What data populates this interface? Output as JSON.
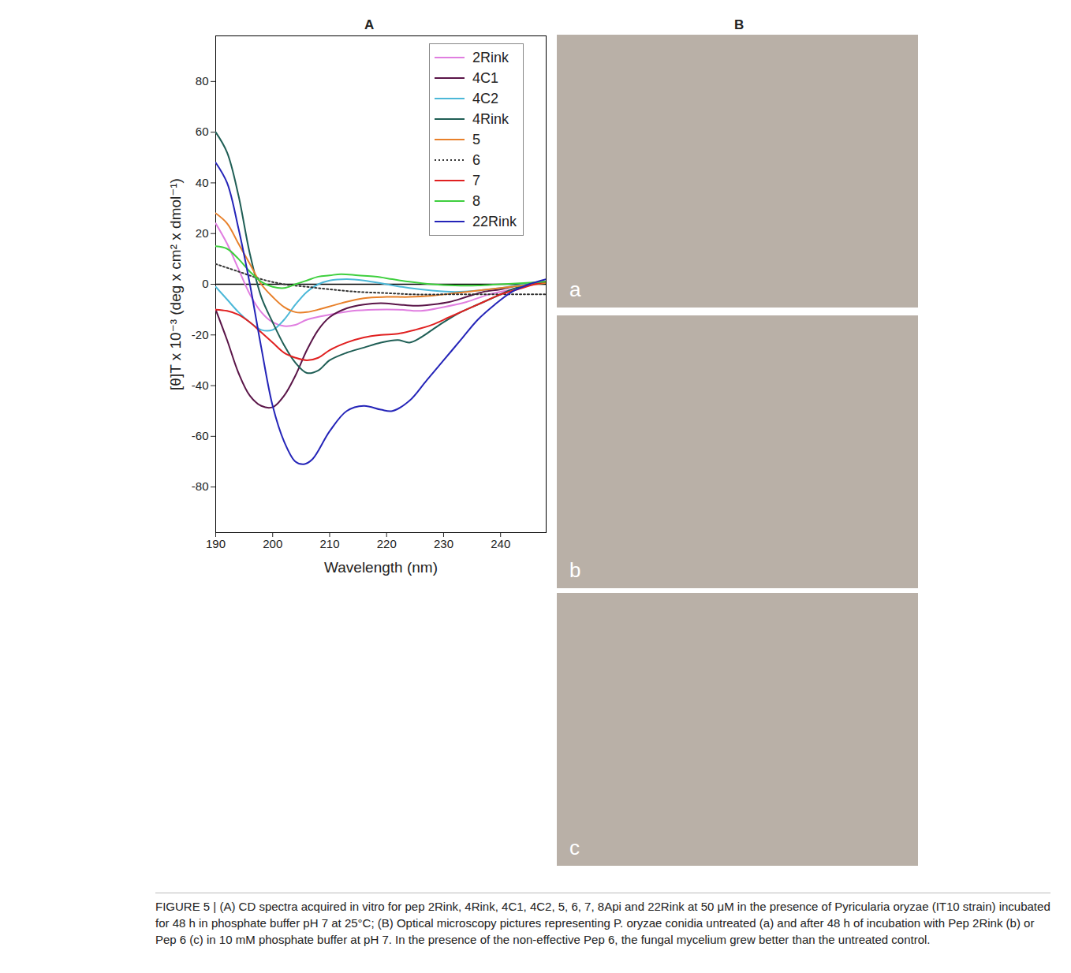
{
  "chart_data": {
    "type": "line",
    "panel_label": "A",
    "x_label": "Wavelength (nm)",
    "y_label": "[θ]T x 10⁻³ (deg x cm² x dmol⁻¹)",
    "xlim": [
      190,
      248
    ],
    "xticks": [
      190,
      200,
      210,
      220,
      230,
      240
    ],
    "ylim": [
      -98,
      98
    ],
    "yticks": [
      -80,
      -60,
      -40,
      -20,
      0,
      20,
      40,
      60,
      80
    ],
    "legend": "top-right",
    "series": [
      {
        "name": "2Rink",
        "color": "#e07ee0",
        "line_style": "solid",
        "x": [
          190,
          192,
          194,
          196,
          198,
          200,
          202,
          204,
          206,
          210,
          214,
          218,
          222,
          226,
          230,
          234,
          238,
          242,
          245,
          248
        ],
        "values": [
          24,
          16,
          6,
          -4,
          -11,
          -15,
          -16.5,
          -16,
          -14,
          -12,
          -10.5,
          -10,
          -10,
          -10.5,
          -9,
          -7,
          -4,
          -2,
          0,
          1
        ]
      },
      {
        "name": "4C1",
        "color": "#5a1548",
        "line_style": "solid",
        "x": [
          190,
          192,
          194,
          196,
          198,
          200,
          202,
          204,
          206,
          208,
          210,
          213,
          216,
          219,
          222,
          225,
          228,
          231,
          234,
          237,
          240,
          244,
          248
        ],
        "values": [
          -10,
          -22,
          -35,
          -44,
          -48,
          -48.5,
          -44,
          -36,
          -26,
          -18,
          -13,
          -9.5,
          -8,
          -7.5,
          -8,
          -8.5,
          -8,
          -7,
          -5,
          -3,
          -2,
          0,
          1
        ]
      },
      {
        "name": "4C2",
        "color": "#4cb8d8",
        "line_style": "solid",
        "x": [
          190,
          192,
          194,
          196,
          198,
          200,
          202,
          204,
          206,
          208,
          210,
          213,
          216,
          220,
          224,
          228,
          232,
          236,
          240,
          244,
          248
        ],
        "values": [
          -1,
          -6,
          -11,
          -15,
          -18,
          -18,
          -14,
          -8,
          -3,
          0,
          1.5,
          2,
          1.5,
          0,
          -1.5,
          -2.5,
          -3,
          -2.5,
          -1.5,
          0,
          1
        ]
      },
      {
        "name": "4Rink",
        "color": "#1f5e55",
        "line_style": "solid",
        "x": [
          190,
          192,
          194,
          196,
          198,
          200,
          202,
          204,
          206,
          208,
          210,
          213,
          216,
          219,
          222,
          224,
          226,
          228,
          230,
          233,
          236,
          239,
          242,
          245,
          248
        ],
        "values": [
          60,
          52,
          35,
          12,
          -5,
          -15,
          -24,
          -31,
          -35,
          -34,
          -30,
          -27,
          -25,
          -23,
          -22,
          -23,
          -21,
          -18,
          -15,
          -11,
          -8,
          -5,
          -2,
          0,
          1
        ]
      },
      {
        "name": "5",
        "color": "#e8802a",
        "line_style": "solid",
        "x": [
          190,
          192,
          194,
          196,
          198,
          200,
          202,
          204,
          206,
          208,
          212,
          216,
          220,
          224,
          228,
          232,
          236,
          240,
          244,
          248
        ],
        "values": [
          28,
          24,
          16,
          8,
          0,
          -5,
          -9,
          -11,
          -11,
          -10,
          -7.5,
          -5.5,
          -5,
          -5,
          -4.5,
          -3.5,
          -2.5,
          -1.5,
          -0.5,
          0.5
        ]
      },
      {
        "name": "6",
        "color": "#333333",
        "line_style": "dotted",
        "x": [
          190,
          194,
          198,
          202,
          206,
          210,
          215,
          220,
          225,
          230,
          235,
          240,
          244,
          248
        ],
        "values": [
          8,
          5,
          2,
          0,
          -1,
          -2,
          -3,
          -3.5,
          -4,
          -4,
          -4,
          -4,
          -4,
          -4
        ]
      },
      {
        "name": "7",
        "color": "#e02020",
        "line_style": "solid",
        "x": [
          190,
          192,
          194,
          196,
          198,
          200,
          202,
          204,
          206,
          208,
          210,
          213,
          216,
          219,
          222,
          225,
          228,
          231,
          234,
          237,
          240,
          243,
          246,
          248
        ],
        "values": [
          -10,
          -10.5,
          -12,
          -15,
          -19,
          -23,
          -27,
          -29,
          -30,
          -29,
          -26,
          -23,
          -21,
          -20,
          -19.5,
          -18,
          -16,
          -13,
          -10,
          -7,
          -4,
          -2,
          0,
          1
        ]
      },
      {
        "name": "8",
        "color": "#3ecf3e",
        "line_style": "solid",
        "x": [
          190,
          192,
          194,
          196,
          198,
          200,
          202,
          204,
          206,
          208,
          210,
          212,
          215,
          218,
          221,
          224,
          228,
          232,
          236,
          240,
          244,
          248
        ],
        "values": [
          15,
          14,
          10,
          5,
          1,
          -1,
          -1.5,
          0,
          1.5,
          3,
          3.5,
          4,
          3.5,
          3,
          2,
          1,
          0,
          -0.5,
          -0.5,
          0,
          0.5,
          1
        ]
      },
      {
        "name": "22Rink",
        "color": "#2424b8",
        "line_style": "solid",
        "x": [
          190,
          192,
          194,
          196,
          198,
          200,
          202,
          204,
          205.5,
          207,
          210,
          213,
          216,
          219,
          221,
          224,
          227,
          230,
          233,
          236,
          239,
          242,
          245,
          248
        ],
        "values": [
          48,
          40,
          22,
          0,
          -25,
          -48,
          -62,
          -70,
          -71,
          -69,
          -58,
          -50,
          -48,
          -49.5,
          -50,
          -46,
          -38,
          -30,
          -22,
          -14,
          -8,
          -3,
          0,
          2
        ]
      }
    ]
  },
  "panel_b": {
    "label": "B",
    "images": [
      {
        "label": "a"
      },
      {
        "label": "b"
      },
      {
        "label": "c"
      }
    ]
  },
  "caption": "FIGURE 5 | (A) CD spectra acquired in vitro for pep 2Rink, 4Rink, 4C1, 4C2, 5, 6, 7, 8Api and 22Rink at 50 μM in the presence of Pyricularia oryzae (IT10 strain) incubated for 48 h in phosphate buffer pH 7 at 25°C; (B) Optical microscopy pictures representing P. oryzae conidia untreated (a) and after 48 h of incubation with Pep 2Rink (b) or Pep 6 (c) in 10 mM phosphate buffer at pH 7. In the presence of the non-effective Pep 6, the fungal mycelium grew better than the untreated control."
}
